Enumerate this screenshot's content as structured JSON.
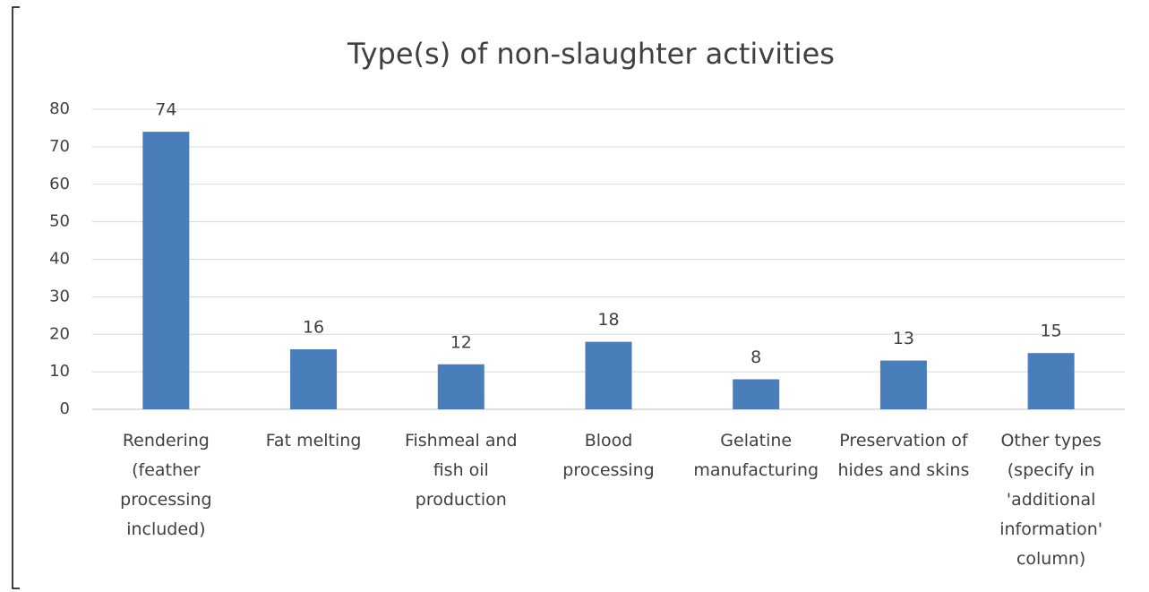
{
  "chart_data": {
    "type": "bar",
    "title": "Type(s) of non-slaughter activities",
    "categories": [
      "Rendering (feather processing included)",
      "Fat melting",
      "Fishmeal and fish oil production",
      "Blood processing",
      "Gelatine manufacturing",
      "Preservation of hides and skins",
      "Other types (specify in 'additional information' column)"
    ],
    "values": [
      74,
      16,
      12,
      18,
      8,
      13,
      15
    ],
    "color": "#4a7ebb",
    "ylim": [
      0,
      80
    ],
    "yticks": [
      0,
      10,
      20,
      30,
      40,
      50,
      60,
      70,
      80
    ],
    "grid": true
  }
}
